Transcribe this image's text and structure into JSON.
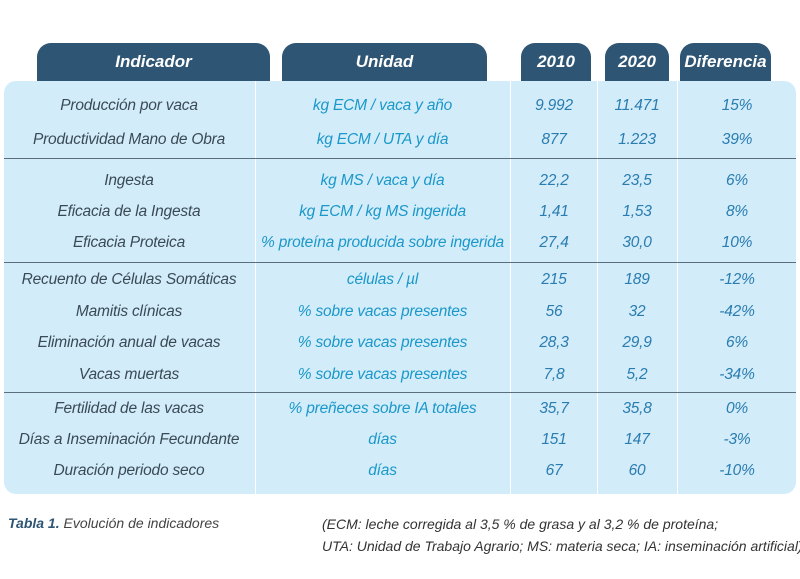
{
  "headers": {
    "indicador": "Indicador",
    "unidad": "Unidad",
    "y2010": "2010",
    "y2020": "2020",
    "diferencia": "Diferencia"
  },
  "rows": [
    {
      "indicador": "Producción por vaca",
      "unidad": "kg ECM / vaca y año",
      "y2010": "9.992",
      "y2020": "11.471",
      "diferencia": "15%"
    },
    {
      "indicador": "Productividad Mano de Obra",
      "unidad": "kg ECM / UTA y día",
      "y2010": "877",
      "y2020": "1.223",
      "diferencia": "39%"
    },
    {
      "indicador": "Ingesta",
      "unidad": "kg MS / vaca y día",
      "y2010": "22,2",
      "y2020": "23,5",
      "diferencia": "6%"
    },
    {
      "indicador": "Eficacia de la Ingesta",
      "unidad": "kg ECM / kg MS ingerida",
      "y2010": "1,41",
      "y2020": "1,53",
      "diferencia": "8%"
    },
    {
      "indicador": "Eficacia Proteica",
      "unidad": "% proteína producida sobre ingerida",
      "y2010": "27,4",
      "y2020": "30,0",
      "diferencia": "10%"
    },
    {
      "indicador": "Recuento de Células Somáticas",
      "unidad": "células / µl",
      "y2010": "215",
      "y2020": "189",
      "diferencia": "-12%"
    },
    {
      "indicador": "Mamitis clínicas",
      "unidad": "% sobre vacas presentes",
      "y2010": "56",
      "y2020": "32",
      "diferencia": "-42%"
    },
    {
      "indicador": "Eliminación anual de vacas",
      "unidad": "% sobre vacas presentes",
      "y2010": "28,3",
      "y2020": "29,9",
      "diferencia": "6%"
    },
    {
      "indicador": "Vacas muertas",
      "unidad": "% sobre vacas presentes",
      "y2010": "7,8",
      "y2020": "5,2",
      "diferencia": "-34%"
    },
    {
      "indicador": "Fertilidad de las vacas",
      "unidad": "% preñeces sobre IA totales",
      "y2010": "35,7",
      "y2020": "35,8",
      "diferencia": "0%"
    },
    {
      "indicador": "Días a Inseminación Fecundante",
      "unidad": "días",
      "y2010": "151",
      "y2020": "147",
      "diferencia": "-3%"
    },
    {
      "indicador": "Duración periodo seco",
      "unidad": "días",
      "y2010": "67",
      "y2020": "60",
      "diferencia": "-10%"
    }
  ],
  "caption": {
    "label": "Tabla 1.",
    "text": "Evolución de indicadores"
  },
  "note": {
    "line1": "(ECM: leche corregida al 3,5 % de grasa y al 3,2 % de proteína;",
    "line2": "UTA: Unidad de Trabajo Agrario; MS: materia seca; IA: inseminación artificial)"
  },
  "colors": {
    "header_bg": "#2e5573",
    "panel_bg": "#d3ecfa",
    "unit_text": "#1a98c9",
    "value_text": "#2a7db0"
  }
}
